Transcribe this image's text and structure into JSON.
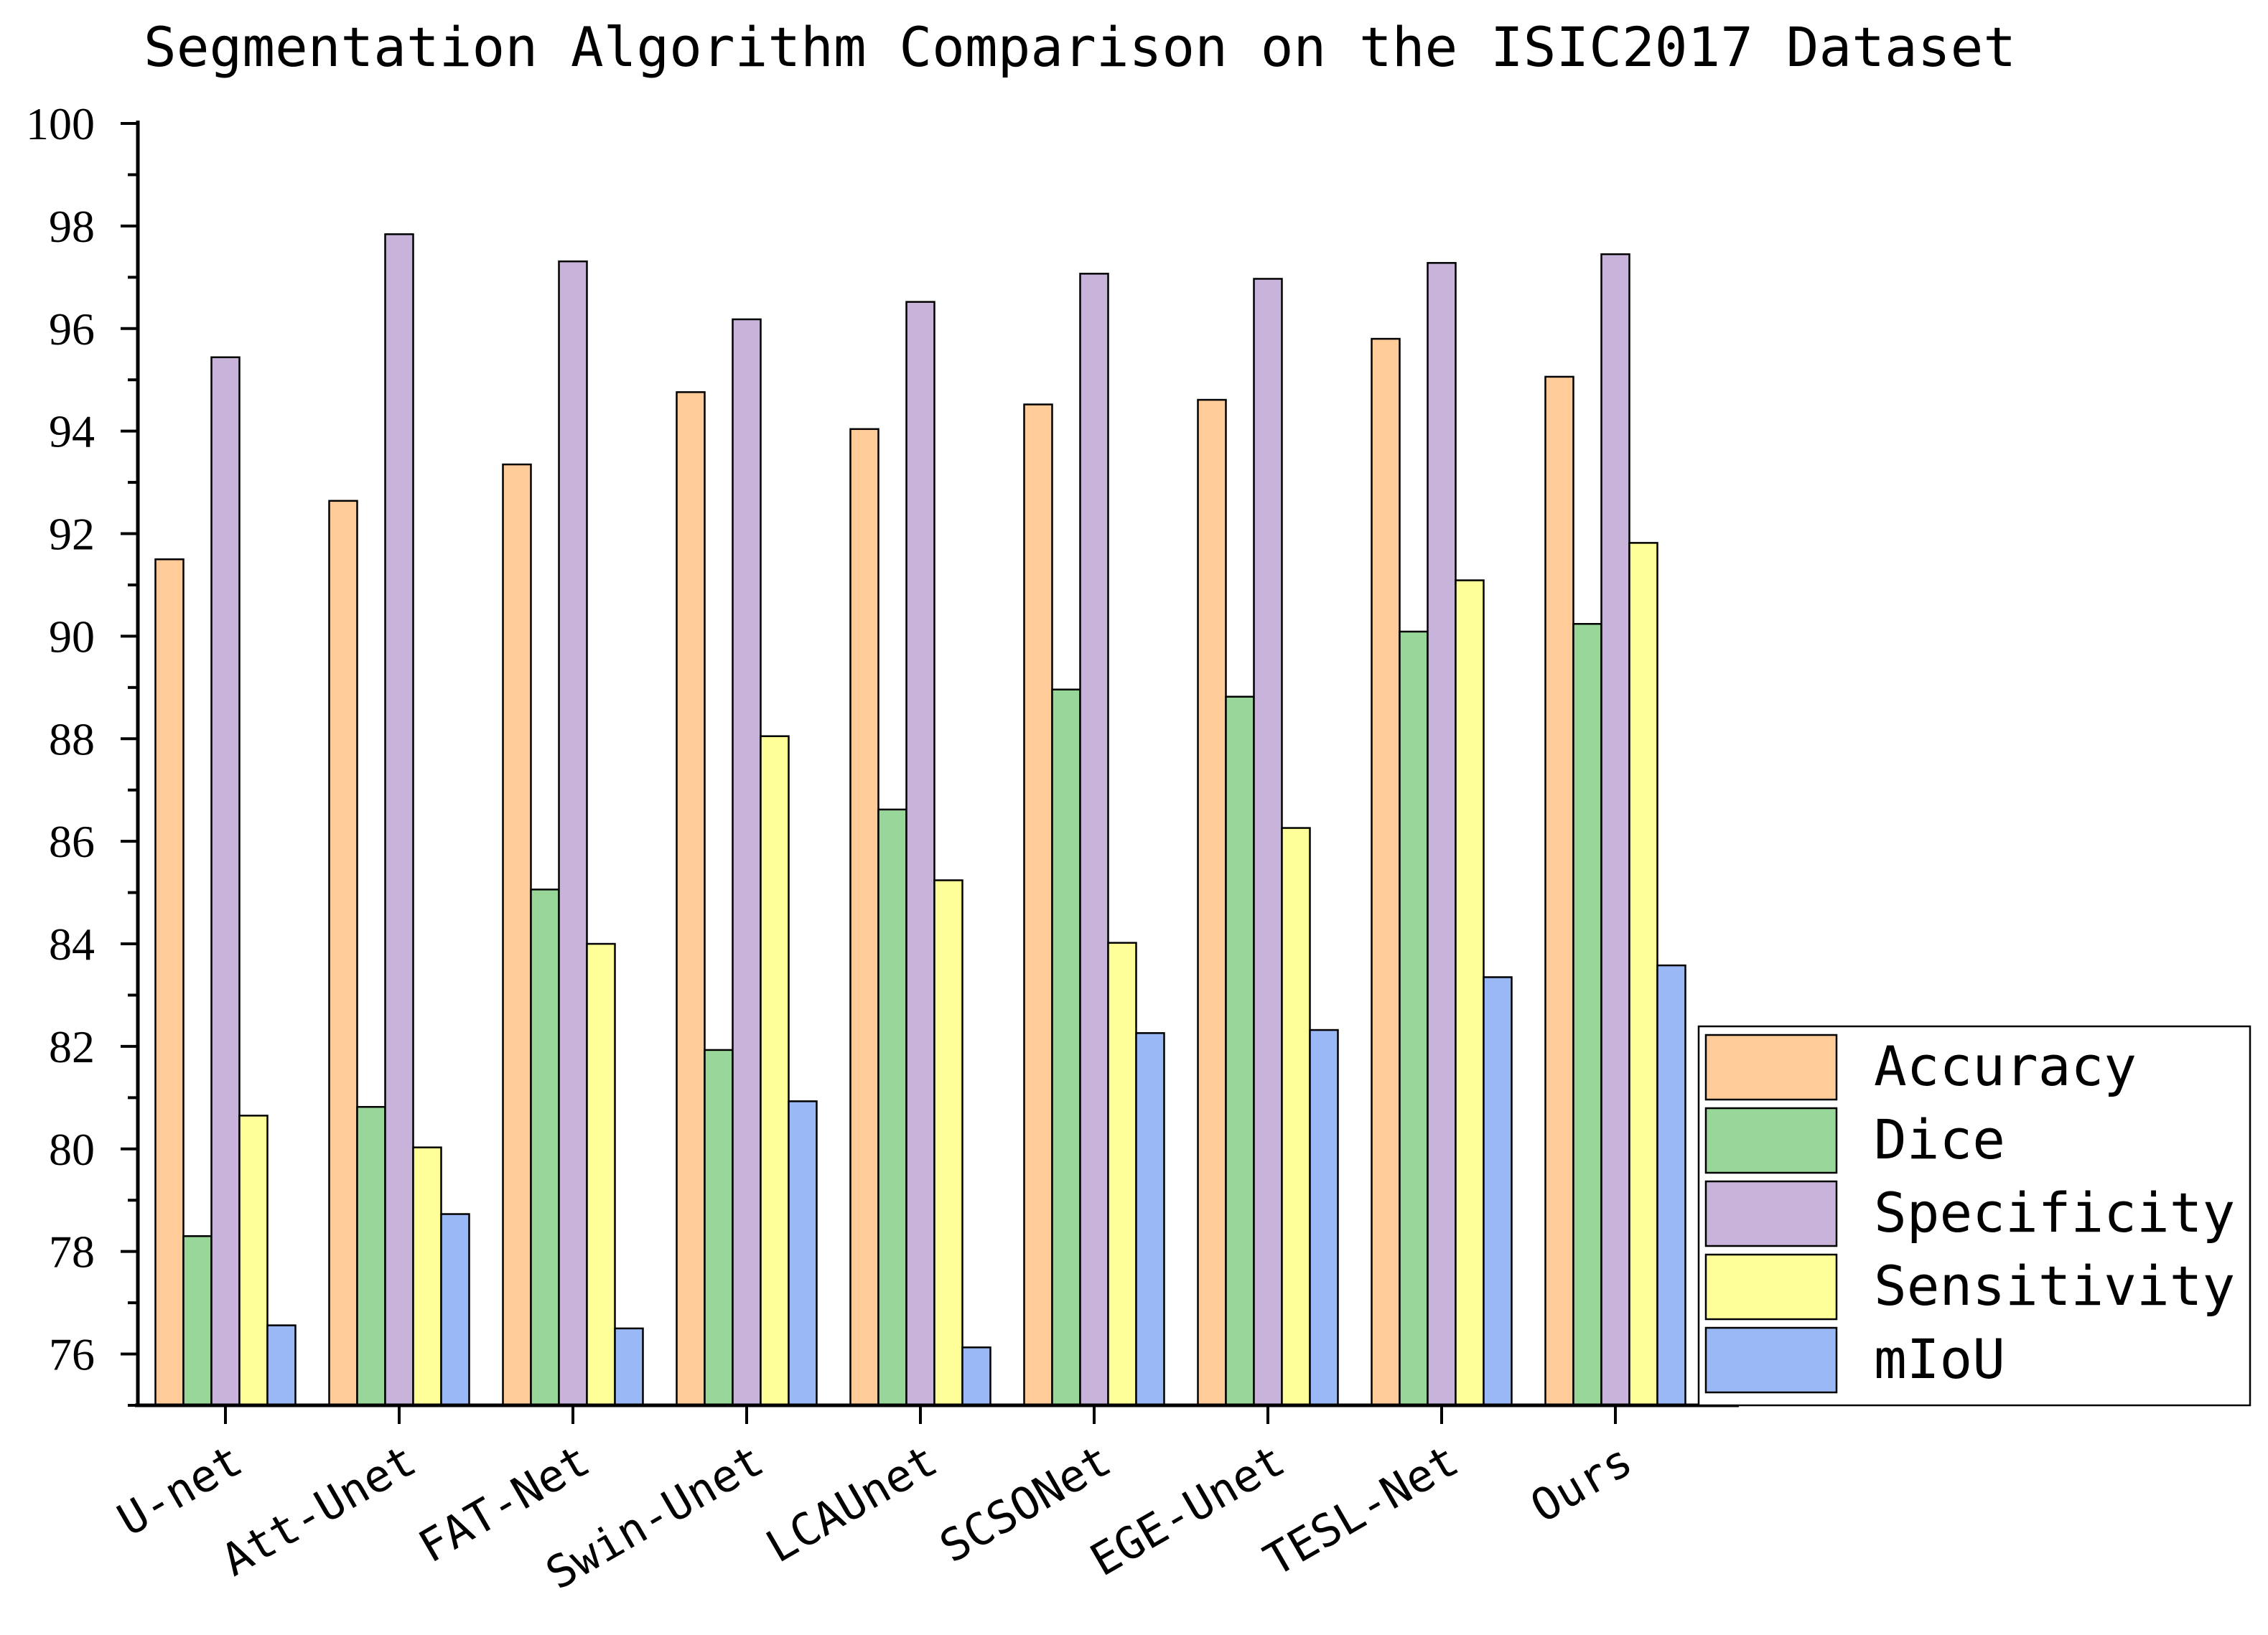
{
  "chart_data": {
    "type": "bar",
    "title": "Segmentation Algorithm Comparison on the ISIC2017 Dataset",
    "xlabel": "",
    "ylabel": "",
    "ylim": [
      75,
      100
    ],
    "yticks": [
      76,
      78,
      80,
      82,
      84,
      86,
      88,
      90,
      92,
      94,
      96,
      98,
      100
    ],
    "categories": [
      "U-net",
      "Att-Unet",
      "FAT-Net",
      "Swin-Unet",
      "LCAUnet",
      "SCSONet",
      "EGE-Unet",
      "TESL-Net",
      "Ours"
    ],
    "series": [
      {
        "name": "Accuracy",
        "color": "#FFCC99",
        "values": [
          91.5,
          92.64,
          93.35,
          94.76,
          94.04,
          94.52,
          94.61,
          95.8,
          95.06
        ]
      },
      {
        "name": "Dice",
        "color": "#99D699",
        "values": [
          78.3,
          80.82,
          85.06,
          81.93,
          86.62,
          88.96,
          88.82,
          90.09,
          90.24
        ]
      },
      {
        "name": "Specificity",
        "color": "#C8B4DB",
        "values": [
          95.44,
          97.84,
          97.31,
          96.18,
          96.52,
          97.07,
          96.97,
          97.28,
          97.45
        ]
      },
      {
        "name": "Sensitivity",
        "color": "#FFFF99",
        "values": [
          80.65,
          80.03,
          84.0,
          88.05,
          85.24,
          84.02,
          86.26,
          91.09,
          91.82
        ]
      },
      {
        "name": "mIoU",
        "color": "#99B8F5",
        "values": [
          76.56,
          78.73,
          76.5,
          80.93,
          76.13,
          82.26,
          82.32,
          83.35,
          83.58
        ]
      }
    ],
    "legend_position": "bottom-right",
    "grid": false
  }
}
